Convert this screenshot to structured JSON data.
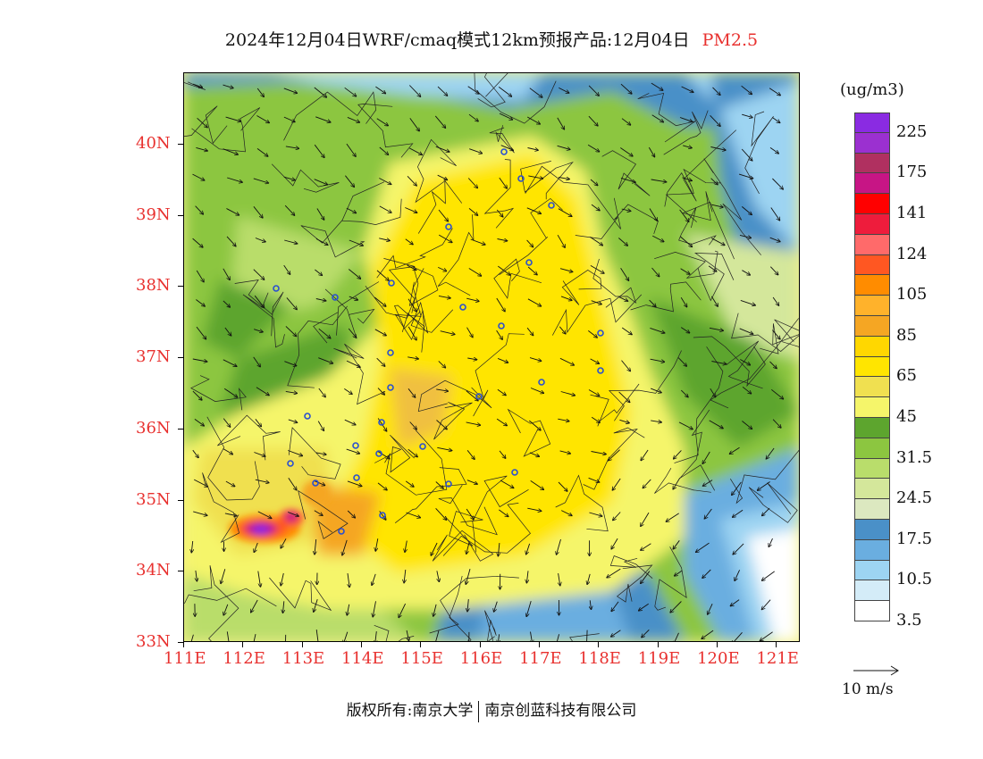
{
  "header": {
    "title": "2024年12月04日WRF/cmaq模式12km预报产品:12月04日",
    "pollutant": "PM2.5"
  },
  "map": {
    "lat_labels": [
      "40N",
      "39N",
      "38N",
      "37N",
      "36N",
      "35N",
      "34N",
      "33N"
    ],
    "lon_labels": [
      "111E",
      "112E",
      "113E",
      "114E",
      "115E",
      "116E",
      "117E",
      "118E",
      "119E",
      "120E",
      "121E"
    ],
    "lat_range": [
      33,
      41
    ],
    "lon_range": [
      111,
      121.4
    ],
    "wind_vectors": true,
    "city_markers": true
  },
  "colorbar": {
    "unit": "(ug/m3)",
    "colors": [
      "#8a2be2",
      "#9b30d0",
      "#b03060",
      "#c71585",
      "#ff0000",
      "#ee1c3c",
      "#ff6a6a",
      "#ff5722",
      "#ff8c00",
      "#ffb22b",
      "#f5a623",
      "#ffd700",
      "#ffe500",
      "#f0e050",
      "#f5f56a",
      "#5da52e",
      "#8cc640",
      "#b9dd6b",
      "#d4e79b",
      "#dce8c0",
      "#4a90c8",
      "#6aaee0",
      "#9dd4f2",
      "#d4ecf8",
      "#ffffff"
    ],
    "labels": [
      "225",
      "175",
      "141",
      "124",
      "105",
      "85",
      "65",
      "45",
      "31.5",
      "24.5",
      "17.5",
      "10.5",
      "3.5"
    ]
  },
  "vector_reference": {
    "label": "10 m/s"
  },
  "footer": {
    "copyright": "版权所有:南京大学",
    "company": "南京创蓝科技有限公司"
  }
}
